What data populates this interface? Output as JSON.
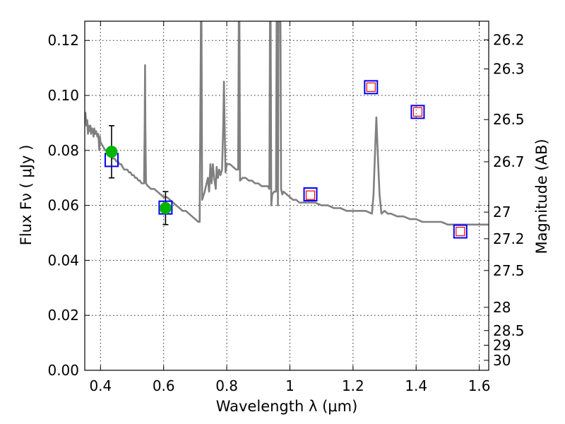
{
  "chart_data": {
    "type": "scatter",
    "title": "",
    "xlabel": "Wavelength  λ (μm)",
    "ylabel": "Flux  Fν  ( μJy )",
    "ylabel_right": "Magnitude (AB)",
    "xlim": [
      0.35,
      1.63
    ],
    "ylim": [
      0.0,
      0.127
    ],
    "grid": true,
    "x_ticks": [
      {
        "value": 0.4,
        "label": "0.4"
      },
      {
        "value": 0.6,
        "label": "0.6"
      },
      {
        "value": 0.8,
        "label": "0.8"
      },
      {
        "value": 1.0,
        "label": "1"
      },
      {
        "value": 1.2,
        "label": "1.2"
      },
      {
        "value": 1.4,
        "label": "1.4"
      },
      {
        "value": 1.6,
        "label": "1.6"
      }
    ],
    "y_ticks": [
      {
        "value": 0.0,
        "label": "0.00"
      },
      {
        "value": 0.02,
        "label": "0.02"
      },
      {
        "value": 0.04,
        "label": "0.04"
      },
      {
        "value": 0.06,
        "label": "0.06"
      },
      {
        "value": 0.08,
        "label": "0.08"
      },
      {
        "value": 0.1,
        "label": "0.10"
      },
      {
        "value": 0.12,
        "label": "0.12"
      }
    ],
    "mag_ticks": [
      {
        "value": 26.2,
        "label": "26.2"
      },
      {
        "value": 26.3,
        "label": "26.3"
      },
      {
        "value": 26.5,
        "label": "26.5"
      },
      {
        "value": 26.7,
        "label": "26.7"
      },
      {
        "value": 27.0,
        "label": "27"
      },
      {
        "value": 27.2,
        "label": "27.2"
      },
      {
        "value": 27.5,
        "label": "27.5"
      },
      {
        "value": 28.0,
        "label": "28"
      },
      {
        "value": 28.5,
        "label": "28.5"
      },
      {
        "value": 29.0,
        "label": "29"
      },
      {
        "value": 30.0,
        "label": "30"
      }
    ],
    "model_spectrum": {
      "color": "#808080",
      "points": [
        [
          0.352,
          0.094
        ],
        [
          0.355,
          0.089
        ],
        [
          0.358,
          0.091
        ],
        [
          0.36,
          0.086
        ],
        [
          0.362,
          0.089
        ],
        [
          0.365,
          0.087
        ],
        [
          0.368,
          0.089
        ],
        [
          0.37,
          0.086
        ],
        [
          0.373,
          0.088
        ],
        [
          0.376,
          0.087
        ],
        [
          0.378,
          0.085
        ],
        [
          0.38,
          0.088
        ],
        [
          0.383,
          0.086
        ],
        [
          0.386,
          0.087
        ],
        [
          0.39,
          0.085
        ],
        [
          0.393,
          0.086
        ],
        [
          0.396,
          0.08
        ],
        [
          0.398,
          0.085
        ],
        [
          0.4,
          0.083
        ],
        [
          0.405,
          0.082
        ],
        [
          0.41,
          0.081
        ],
        [
          0.415,
          0.08
        ],
        [
          0.42,
          0.08
        ],
        [
          0.425,
          0.079
        ],
        [
          0.43,
          0.078
        ],
        [
          0.435,
          0.078
        ],
        [
          0.44,
          0.077
        ],
        [
          0.445,
          0.077
        ],
        [
          0.45,
          0.076
        ],
        [
          0.455,
          0.076
        ],
        [
          0.46,
          0.075
        ],
        [
          0.465,
          0.075
        ],
        [
          0.47,
          0.074
        ],
        [
          0.475,
          0.073
        ],
        [
          0.48,
          0.073
        ],
        [
          0.485,
          0.073
        ],
        [
          0.49,
          0.072
        ],
        [
          0.495,
          0.072
        ],
        [
          0.5,
          0.071
        ],
        [
          0.505,
          0.071
        ],
        [
          0.51,
          0.07
        ],
        [
          0.515,
          0.07
        ],
        [
          0.52,
          0.069
        ],
        [
          0.525,
          0.069
        ],
        [
          0.53,
          0.068
        ],
        [
          0.535,
          0.068
        ],
        [
          0.538,
          0.068
        ],
        [
          0.54,
          0.09
        ],
        [
          0.541,
          0.111
        ],
        [
          0.542,
          0.09
        ],
        [
          0.544,
          0.068
        ],
        [
          0.55,
          0.067
        ],
        [
          0.56,
          0.066
        ],
        [
          0.57,
          0.066
        ],
        [
          0.58,
          0.065
        ],
        [
          0.59,
          0.064
        ],
        [
          0.6,
          0.063
        ],
        [
          0.61,
          0.063
        ],
        [
          0.62,
          0.062
        ],
        [
          0.63,
          0.061
        ],
        [
          0.64,
          0.06
        ],
        [
          0.65,
          0.059
        ],
        [
          0.66,
          0.058
        ],
        [
          0.67,
          0.058
        ],
        [
          0.68,
          0.057
        ],
        [
          0.69,
          0.056
        ],
        [
          0.7,
          0.055
        ],
        [
          0.71,
          0.054
        ],
        [
          0.714,
          0.054
        ],
        [
          0.716,
          0.09
        ],
        [
          0.718,
          0.127
        ],
        [
          0.72,
          0.127
        ],
        [
          0.722,
          0.062
        ],
        [
          0.73,
          0.065
        ],
        [
          0.74,
          0.07
        ],
        [
          0.744,
          0.065
        ],
        [
          0.748,
          0.075
        ],
        [
          0.752,
          0.068
        ],
        [
          0.756,
          0.075
        ],
        [
          0.76,
          0.07
        ],
        [
          0.765,
          0.066
        ],
        [
          0.768,
          0.074
        ],
        [
          0.772,
          0.07
        ],
        [
          0.776,
          0.073
        ],
        [
          0.78,
          0.071
        ],
        [
          0.785,
          0.073
        ],
        [
          0.789,
          0.09
        ],
        [
          0.791,
          0.105
        ],
        [
          0.793,
          0.09
        ],
        [
          0.796,
          0.072
        ],
        [
          0.8,
          0.075
        ],
        [
          0.81,
          0.075
        ],
        [
          0.82,
          0.074
        ],
        [
          0.83,
          0.073
        ],
        [
          0.836,
          0.073
        ],
        [
          0.838,
          0.127
        ],
        [
          0.84,
          0.127
        ],
        [
          0.842,
          0.069
        ],
        [
          0.85,
          0.07
        ],
        [
          0.86,
          0.07
        ],
        [
          0.87,
          0.069
        ],
        [
          0.88,
          0.069
        ],
        [
          0.89,
          0.068
        ],
        [
          0.9,
          0.068
        ],
        [
          0.91,
          0.067
        ],
        [
          0.92,
          0.067
        ],
        [
          0.93,
          0.067
        ],
        [
          0.935,
          0.066
        ],
        [
          0.937,
          0.127
        ],
        [
          0.939,
          0.127
        ],
        [
          0.941,
          0.06
        ],
        [
          0.944,
          0.064
        ],
        [
          0.95,
          0.065
        ],
        [
          0.956,
          0.065
        ],
        [
          0.958,
          0.127
        ],
        [
          0.96,
          0.127
        ],
        [
          0.962,
          0.06
        ],
        [
          0.964,
          0.127
        ],
        [
          0.966,
          0.127
        ],
        [
          0.968,
          0.127
        ],
        [
          0.97,
          0.127
        ],
        [
          0.972,
          0.066
        ],
        [
          0.976,
          0.064
        ],
        [
          0.98,
          0.065
        ],
        [
          0.99,
          0.064
        ],
        [
          1.0,
          0.063
        ],
        [
          1.01,
          0.062
        ],
        [
          1.02,
          0.062
        ],
        [
          1.03,
          0.061
        ],
        [
          1.04,
          0.061
        ],
        [
          1.05,
          0.061
        ],
        [
          1.06,
          0.061
        ],
        [
          1.08,
          0.061
        ],
        [
          1.1,
          0.06
        ],
        [
          1.12,
          0.06
        ],
        [
          1.14,
          0.059
        ],
        [
          1.16,
          0.059
        ],
        [
          1.18,
          0.058
        ],
        [
          1.2,
          0.058
        ],
        [
          1.22,
          0.058
        ],
        [
          1.24,
          0.058
        ],
        [
          1.26,
          0.057
        ],
        [
          1.265,
          0.064
        ],
        [
          1.27,
          0.08
        ],
        [
          1.274,
          0.092
        ],
        [
          1.278,
          0.08
        ],
        [
          1.284,
          0.064
        ],
        [
          1.29,
          0.057
        ],
        [
          1.3,
          0.058
        ],
        [
          1.31,
          0.057
        ],
        [
          1.32,
          0.057
        ],
        [
          1.34,
          0.056
        ],
        [
          1.36,
          0.056
        ],
        [
          1.38,
          0.055
        ],
        [
          1.4,
          0.055
        ],
        [
          1.42,
          0.054
        ],
        [
          1.44,
          0.054
        ],
        [
          1.46,
          0.054
        ],
        [
          1.48,
          0.054
        ],
        [
          1.5,
          0.053
        ],
        [
          1.52,
          0.053
        ],
        [
          1.54,
          0.053
        ],
        [
          1.56,
          0.053
        ],
        [
          1.58,
          0.053
        ],
        [
          1.6,
          0.053
        ],
        [
          1.63,
          0.053
        ]
      ]
    },
    "observed": {
      "color": "#00b400",
      "points": [
        {
          "x": 0.435,
          "y": 0.0795,
          "err": 0.0095
        },
        {
          "x": 0.606,
          "y": 0.059,
          "err": 0.006
        }
      ]
    },
    "model_photometry": {
      "color": "#0000ff",
      "points": [
        {
          "x": 0.435,
          "y": 0.0765
        },
        {
          "x": 0.606,
          "y": 0.0592
        },
        {
          "x": 1.065,
          "y": 0.064
        },
        {
          "x": 1.257,
          "y": 0.103
        },
        {
          "x": 1.405,
          "y": 0.094
        },
        {
          "x": 1.54,
          "y": 0.0505
        }
      ]
    },
    "upper_limits": {
      "color": "#ff0000",
      "points": [
        {
          "x": 1.065,
          "y": 0.0637
        },
        {
          "x": 1.257,
          "y": 0.103
        },
        {
          "x": 1.405,
          "y": 0.094
        },
        {
          "x": 1.54,
          "y": 0.0505
        }
      ]
    }
  }
}
